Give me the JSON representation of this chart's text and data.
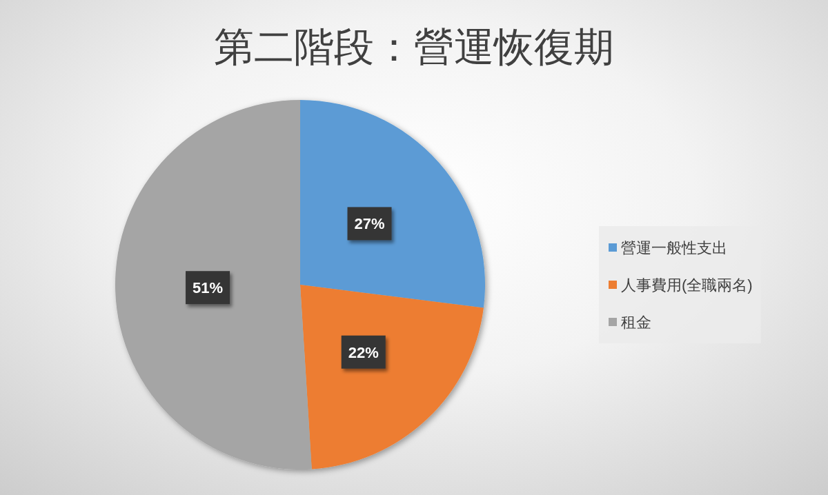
{
  "chart_data": {
    "type": "pie",
    "title": "第二階段：營運恢復期",
    "categories": [
      "營運一般性支出",
      "人事費用(全職兩名)",
      "租金"
    ],
    "values": [
      27,
      22,
      51
    ],
    "colors": [
      "#5b9bd5",
      "#ed7d31",
      "#a5a5a5"
    ],
    "value_labels": [
      "27%",
      "22%",
      "51%"
    ],
    "legend": "right"
  }
}
